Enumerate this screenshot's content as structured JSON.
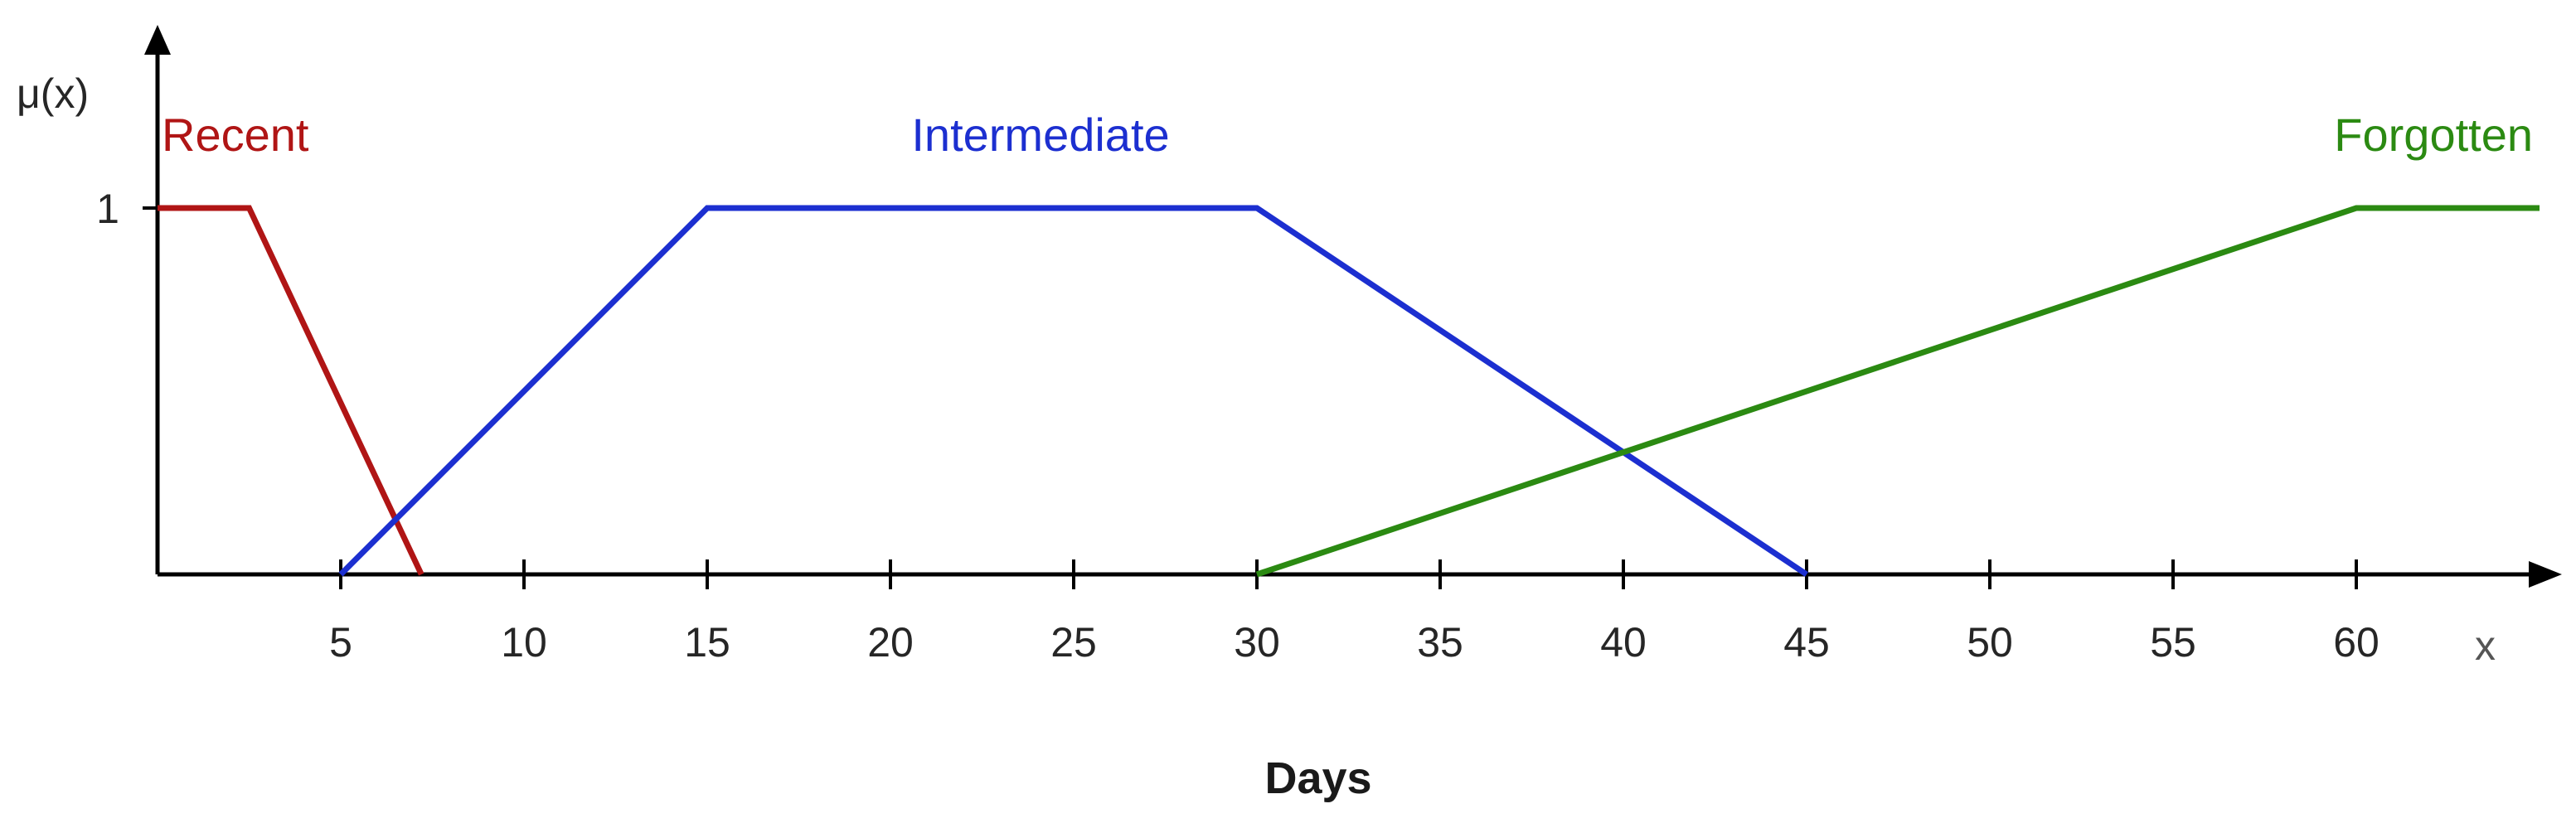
{
  "chart_data": {
    "type": "line",
    "xlabel": "Days",
    "ylabel": "μ(x)",
    "x_axis_letter": "x",
    "xlim": [
      0,
      65
    ],
    "ylim": [
      0,
      1
    ],
    "x_ticks": [
      5,
      10,
      15,
      20,
      25,
      30,
      35,
      40,
      45,
      50,
      55,
      60
    ],
    "y_ticks": [
      1
    ],
    "grid": false,
    "series": [
      {
        "name": "Recent",
        "color": "#b01515",
        "points": [
          [
            0,
            1
          ],
          [
            2.5,
            1
          ],
          [
            7.2,
            0
          ]
        ]
      },
      {
        "name": "Intermediate",
        "color": "#1c2fd0",
        "points": [
          [
            5,
            0
          ],
          [
            15,
            1
          ],
          [
            30,
            1
          ],
          [
            45,
            0
          ]
        ]
      },
      {
        "name": "Forgotten",
        "color": "#2b8a12",
        "points": [
          [
            30,
            0
          ],
          [
            60,
            1
          ],
          [
            65,
            1
          ]
        ]
      }
    ]
  }
}
